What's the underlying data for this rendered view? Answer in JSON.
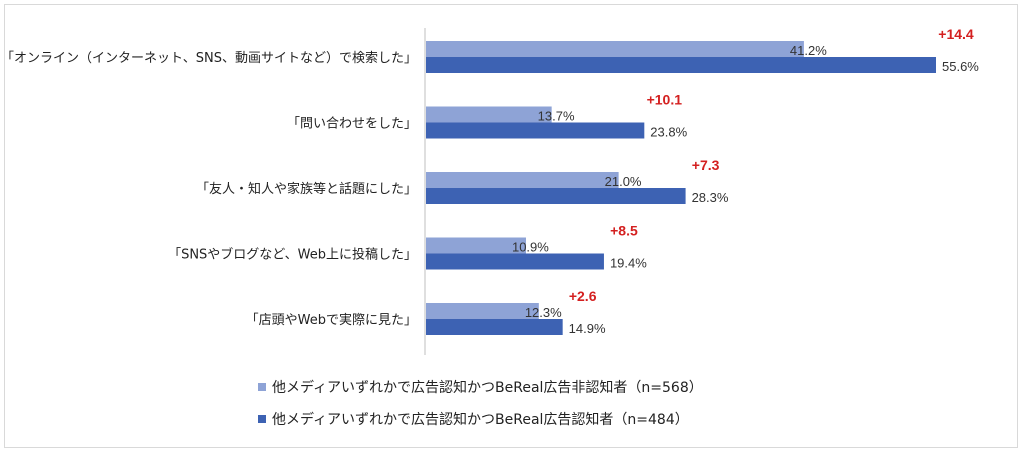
{
  "chart_data": {
    "type": "bar",
    "orientation": "horizontal",
    "categories": [
      "「オンライン（インターネット、SNS、動画サイトなど）で検索した」",
      "「問い合わせをした」",
      "「友人・知人や家族等と話題にした」",
      "「SNSやブログなど、Web上に投稿した」",
      "「店頭やWebで実際に見た」"
    ],
    "series": [
      {
        "name": "他メディアいずれかで広告認知かつBeReal広告非認知者（n=568）",
        "values": [
          41.2,
          13.7,
          21.0,
          10.9,
          12.3
        ],
        "labels": [
          "41.2%",
          "13.7%",
          "21.0%",
          "10.9%",
          "12.3%"
        ],
        "color": "#8ea3d6"
      },
      {
        "name": "他メディアいずれかで広告認知かつBeReal広告認知者（n=484）",
        "values": [
          55.6,
          23.8,
          28.3,
          19.4,
          14.9
        ],
        "labels": [
          "55.6%",
          "23.8%",
          "28.3%",
          "19.4%",
          "14.9%"
        ],
        "color": "#3d62b3"
      }
    ],
    "differences": [
      "+14.4",
      "+10.1",
      "+7.3",
      "+8.5",
      "+2.6"
    ],
    "xlim": [
      0,
      60
    ],
    "grid": false,
    "legend_position": "bottom"
  }
}
